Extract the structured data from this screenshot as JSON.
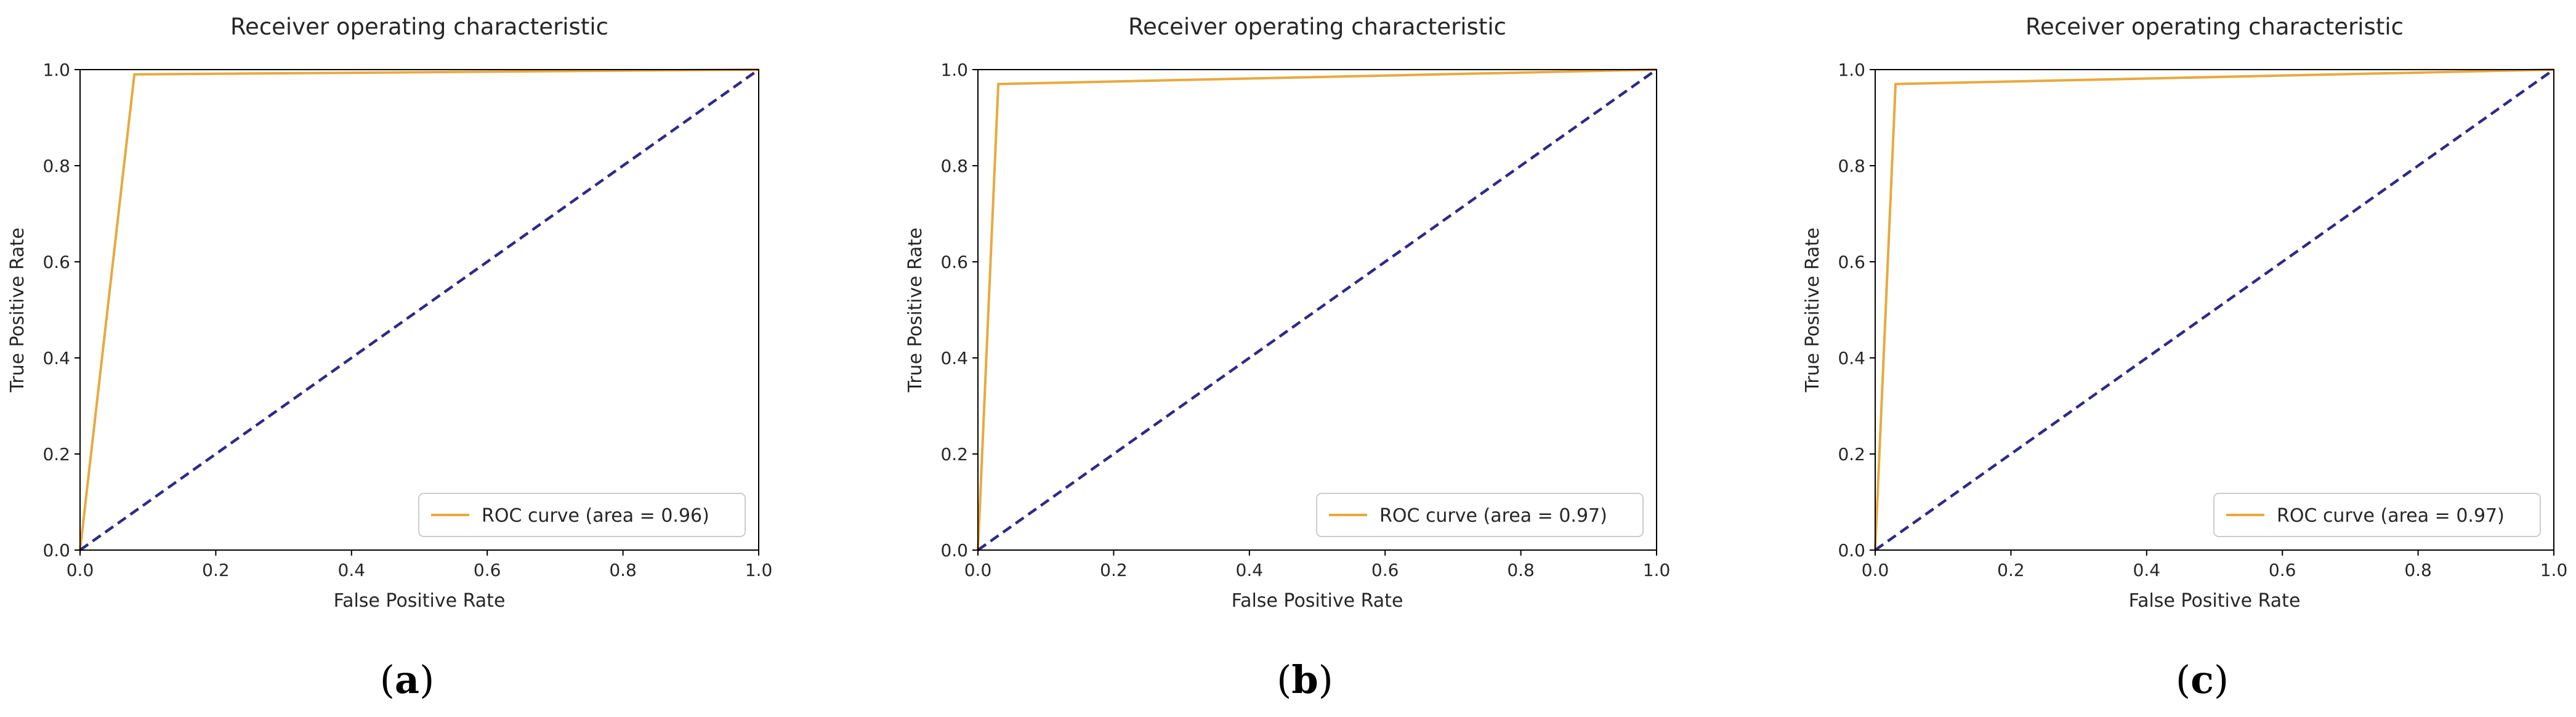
{
  "chart_data": [
    {
      "type": "line",
      "title": "Receiver operating characteristic",
      "xlabel": "False Positive Rate",
      "ylabel": "True Positive Rate",
      "xlim": [
        0.0,
        1.0
      ],
      "ylim": [
        0.0,
        1.0
      ],
      "xticks": [
        "0.0",
        "0.2",
        "0.4",
        "0.6",
        "0.8",
        "1.0"
      ],
      "yticks": [
        "0.0",
        "0.2",
        "0.4",
        "0.6",
        "0.8",
        "1.0"
      ],
      "grid": false,
      "legend_position": "lower-right",
      "series": [
        {
          "name": "ROC curve (area = 0.96)",
          "color": "#E8A93E",
          "x": [
            0.0,
            0.08,
            1.0
          ],
          "y": [
            0.0,
            0.99,
            1.0
          ]
        },
        {
          "color": "#2F2A85",
          "dashed": true,
          "x": [
            0.0,
            1.0
          ],
          "y": [
            0.0,
            1.0
          ]
        }
      ],
      "caption": {
        "open": "(",
        "letter": "a",
        "close": ")"
      }
    },
    {
      "type": "line",
      "title": "Receiver operating characteristic",
      "xlabel": "False Positive Rate",
      "ylabel": "True Positive Rate",
      "xlim": [
        0.0,
        1.0
      ],
      "ylim": [
        0.0,
        1.0
      ],
      "xticks": [
        "0.0",
        "0.2",
        "0.4",
        "0.6",
        "0.8",
        "1.0"
      ],
      "yticks": [
        "0.0",
        "0.2",
        "0.4",
        "0.6",
        "0.8",
        "1.0"
      ],
      "grid": false,
      "legend_position": "lower-right",
      "series": [
        {
          "name": "ROC curve (area = 0.97)",
          "color": "#E8A93E",
          "x": [
            0.0,
            0.03,
            1.0
          ],
          "y": [
            0.0,
            0.97,
            1.0
          ]
        },
        {
          "color": "#2F2A85",
          "dashed": true,
          "x": [
            0.0,
            1.0
          ],
          "y": [
            0.0,
            1.0
          ]
        }
      ],
      "caption": {
        "open": "(",
        "letter": "b",
        "close": ")"
      }
    },
    {
      "type": "line",
      "title": "Receiver operating characteristic",
      "xlabel": "False Positive Rate",
      "ylabel": "True Positive Rate",
      "xlim": [
        0.0,
        1.0
      ],
      "ylim": [
        0.0,
        1.0
      ],
      "xticks": [
        "0.0",
        "0.2",
        "0.4",
        "0.6",
        "0.8",
        "1.0"
      ],
      "yticks": [
        "0.0",
        "0.2",
        "0.4",
        "0.6",
        "0.8",
        "1.0"
      ],
      "grid": false,
      "legend_position": "lower-right",
      "series": [
        {
          "name": "ROC curve (area = 0.97)",
          "color": "#E8A93E",
          "x": [
            0.0,
            0.03,
            1.0
          ],
          "y": [
            0.0,
            0.97,
            1.0
          ]
        },
        {
          "color": "#2F2A85",
          "dashed": true,
          "x": [
            0.0,
            1.0
          ],
          "y": [
            0.0,
            1.0
          ]
        }
      ],
      "caption": {
        "open": "(",
        "letter": "c",
        "close": ")"
      }
    }
  ]
}
